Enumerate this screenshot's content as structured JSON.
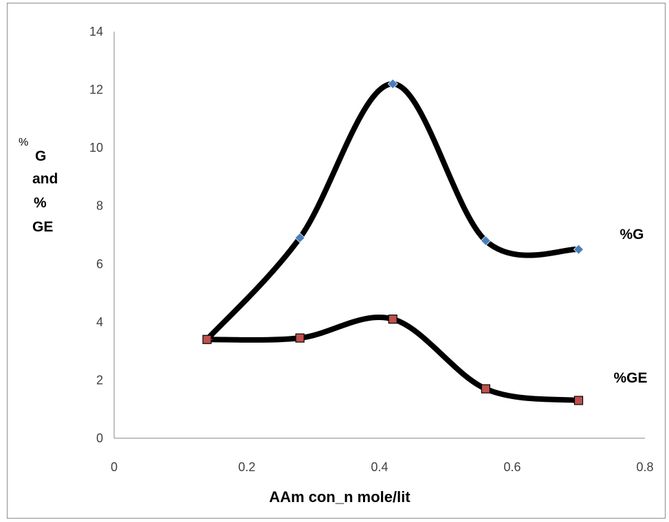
{
  "chart_data": {
    "type": "scatter",
    "xlabel": "AAm  con_n mole/lit",
    "ylabel_parts": [
      "%",
      "G",
      "and",
      "%",
      "GE"
    ],
    "xlim": [
      0,
      0.8
    ],
    "ylim": [
      0,
      14
    ],
    "x_ticks": [
      "0",
      "0.2",
      "0.4",
      "0.6",
      "0.8"
    ],
    "y_ticks": [
      "0",
      "2",
      "4",
      "6",
      "8",
      "10",
      "12",
      "14"
    ],
    "grid": false,
    "smooth_lines": true,
    "series": [
      {
        "name": "%G",
        "marker": "diamond",
        "marker_color": "#4a7ebb",
        "line_color": "#000000",
        "x": [
          0.14,
          0.28,
          0.42,
          0.56,
          0.7
        ],
        "y": [
          3.4,
          6.9,
          12.2,
          6.8,
          6.5
        ]
      },
      {
        "name": "%GE",
        "marker": "square",
        "marker_color": "#c0504d",
        "line_color": "#000000",
        "x": [
          0.14,
          0.28,
          0.42,
          0.56,
          0.7
        ],
        "y": [
          3.4,
          3.45,
          4.1,
          1.7,
          1.3
        ]
      }
    ]
  }
}
